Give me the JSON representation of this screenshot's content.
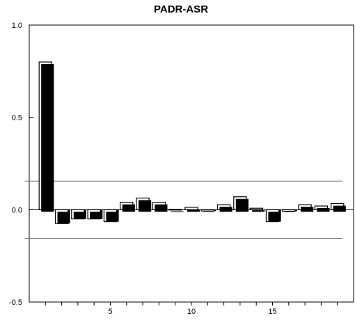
{
  "chart_data": {
    "type": "bar",
    "title": "PADR-ASR",
    "xlabel": "",
    "ylabel": "",
    "x": [
      1,
      2,
      3,
      4,
      5,
      6,
      7,
      8,
      9,
      10,
      11,
      12,
      13,
      14,
      15,
      16,
      17,
      18,
      19
    ],
    "values": [
      0.8,
      -0.075,
      -0.05,
      -0.05,
      -0.065,
      0.04,
      0.063,
      0.04,
      0.002,
      0.013,
      -0.007,
      0.027,
      0.07,
      0.008,
      -0.065,
      -0.008,
      0.027,
      0.02,
      0.033
    ],
    "ylim": [
      -0.5,
      1.0
    ],
    "xlim": [
      0,
      20
    ],
    "y_ticks": [
      -0.5,
      0.0,
      0.5,
      1.0
    ],
    "y_tick_labels": [
      "-0.5",
      "0.0",
      "0.5",
      "1.0"
    ],
    "x_ticks": [
      5,
      10,
      15
    ],
    "x_tick_labels": [
      "5",
      "10",
      "15"
    ],
    "bands": [
      0.155,
      -0.155
    ],
    "bar_color": "#000000",
    "grid": false
  }
}
